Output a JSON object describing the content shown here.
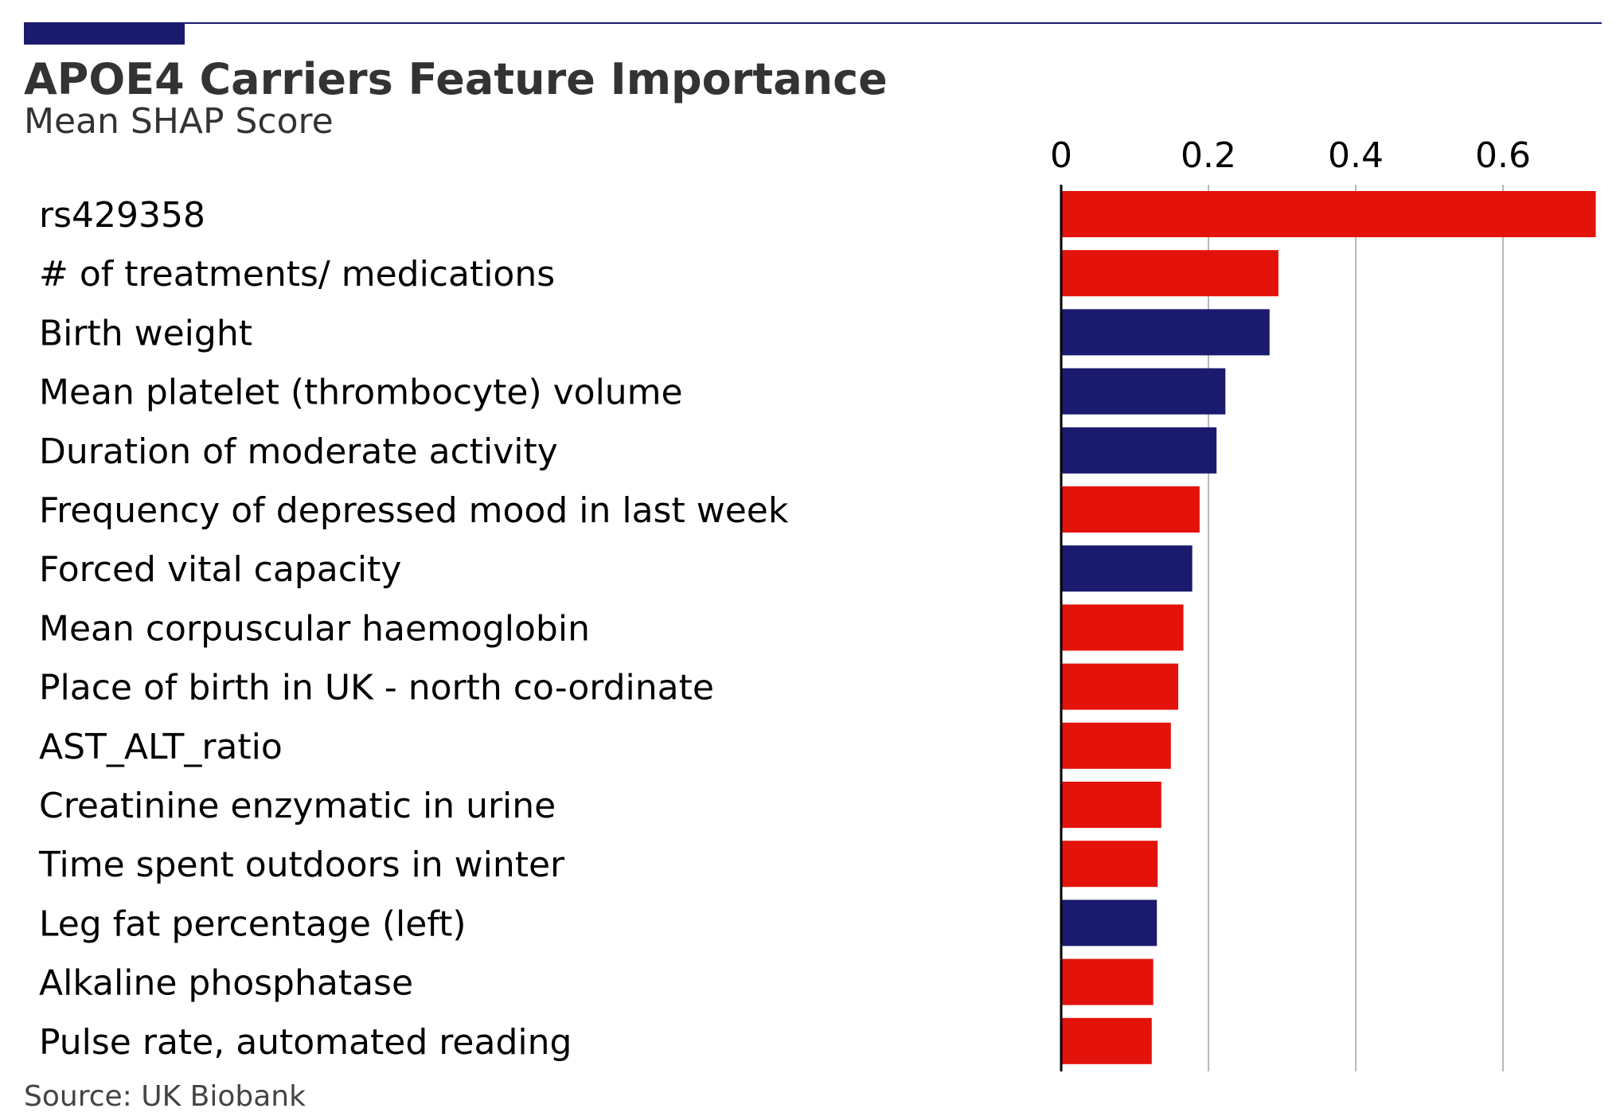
{
  "colors": {
    "accent": "#1a1a6e",
    "positive": "#e3120b",
    "negative": "#1a1a6e",
    "grid": "#b0bcc4",
    "axis": "#000000",
    "title": "#333333",
    "source": "#444444"
  },
  "chart_data": {
    "type": "bar",
    "orientation": "horizontal",
    "title": "APOE4 Carriers Feature Importance",
    "subtitle": "Mean SHAP Score",
    "source": "Source: UK Biobank",
    "xlim": [
      0,
      0.73
    ],
    "xticks": [
      0,
      0.2,
      0.4,
      0.6
    ],
    "xtick_labels": [
      "0",
      "0.2",
      "0.4",
      "0.6"
    ],
    "xaxis_position": "top",
    "grid": true,
    "categories": [
      "rs429358",
      "# of treatments/ medications",
      "Birth weight",
      "Mean platelet (thrombocyte) volume",
      "Duration of moderate activity",
      "Frequency of depressed mood in last week",
      "Forced vital capacity",
      "Mean corpuscular haemoglobin",
      "Place of birth in UK - north co-ordinate",
      "AST_ALT_ratio",
      "Creatinine enzymatic in urine",
      "Time spent outdoors in winter",
      "Leg fat percentage (left)",
      "Alkaline phosphatase",
      "Pulse rate, automated reading"
    ],
    "values": [
      0.726,
      0.295,
      0.283,
      0.223,
      0.211,
      0.188,
      0.178,
      0.166,
      0.159,
      0.149,
      0.136,
      0.131,
      0.13,
      0.125,
      0.123
    ],
    "bar_colors": [
      "#e3120b",
      "#e3120b",
      "#1a1a6e",
      "#1a1a6e",
      "#1a1a6e",
      "#e3120b",
      "#1a1a6e",
      "#e3120b",
      "#e3120b",
      "#e3120b",
      "#e3120b",
      "#e3120b",
      "#1a1a6e",
      "#e3120b",
      "#e3120b"
    ]
  }
}
